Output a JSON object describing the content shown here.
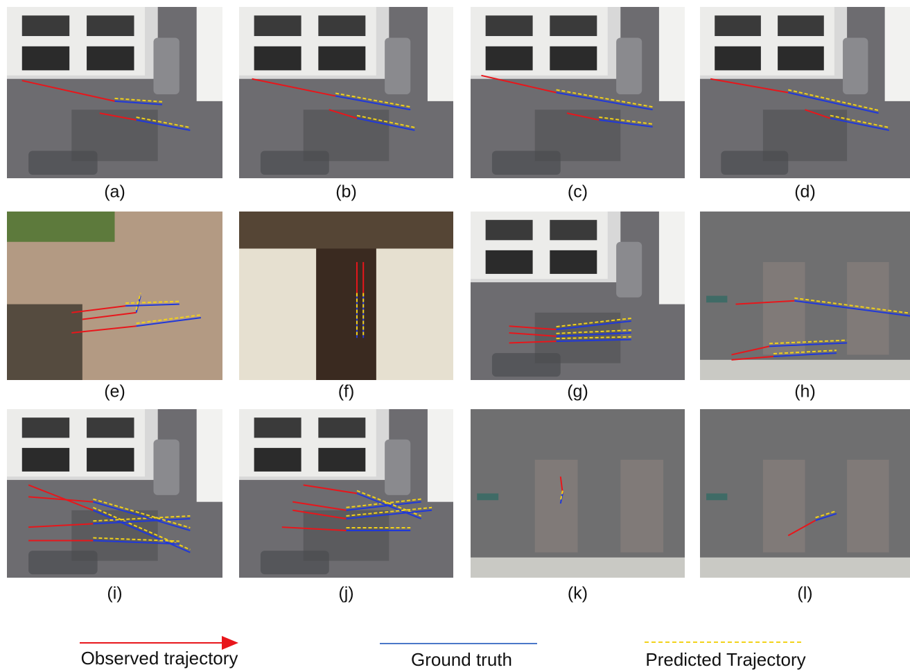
{
  "panels": [
    {
      "label": "(a)"
    },
    {
      "label": "(b)"
    },
    {
      "label": "(c)"
    },
    {
      "label": "(d)"
    },
    {
      "label": "(e)"
    },
    {
      "label": "(f)"
    },
    {
      "label": "(g)"
    },
    {
      "label": "(h)"
    },
    {
      "label": "(i)"
    },
    {
      "label": "(j)"
    },
    {
      "label": "(k)"
    },
    {
      "label": "(l)"
    }
  ],
  "legend": [
    {
      "label": "Observed trajectory"
    },
    {
      "label": "Ground truth"
    },
    {
      "label": "Predicted Trajectory"
    }
  ]
}
